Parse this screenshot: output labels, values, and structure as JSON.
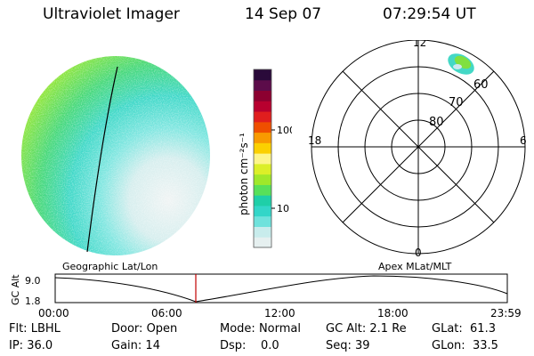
{
  "header": {
    "instrument": "Ultraviolet Imager",
    "date": "14 Sep 07",
    "time": "07:29:54 UT"
  },
  "colorbar": {
    "label": "photon cm⁻²s⁻¹",
    "ticks": [
      "100",
      "10"
    ],
    "colors": [
      "#e6f0f0",
      "#c8ecec",
      "#6fe2dc",
      "#33d6c8",
      "#1fcfa8",
      "#58e05a",
      "#a0e82a",
      "#dcef28",
      "#fdf58a",
      "#fbd000",
      "#f89a00",
      "#ef4f00",
      "#e01e1e",
      "#b8002f",
      "#8c0030",
      "#5c0c4a",
      "#2a0a3a"
    ]
  },
  "polar": {
    "labels": {
      "top": "12",
      "bottom": "0",
      "left": "18",
      "right": "6"
    },
    "lat_labels": [
      "80",
      "70",
      "60"
    ]
  },
  "timeline": {
    "left_title": "Geographic Lat/Lon",
    "right_title": "Apex MLat/MLT",
    "ylabel": "GC Alt",
    "yticks": [
      "9.0",
      "1.8"
    ],
    "xticks": [
      "00:00",
      "06:00",
      "12:00",
      "18:00",
      "23:59"
    ],
    "marker_color": "#c00000"
  },
  "info": {
    "row1": [
      {
        "label": "Flt:",
        "value": "LBHL"
      },
      {
        "label": "Door:",
        "value": "Open"
      },
      {
        "label": "Mode:",
        "value": "Normal"
      },
      {
        "label": "GC Alt:",
        "value": "2.1 Re"
      },
      {
        "label": "GLat:",
        "value": "61.3"
      }
    ],
    "row2": [
      {
        "label": "IP:",
        "value": "36.0"
      },
      {
        "label": "Gain:",
        "value": "14"
      },
      {
        "label": "Dsp:",
        "value": "0.0"
      },
      {
        "label": "Seq:",
        "value": "39"
      },
      {
        "label": "GLon:",
        "value": "33.5"
      }
    ]
  }
}
